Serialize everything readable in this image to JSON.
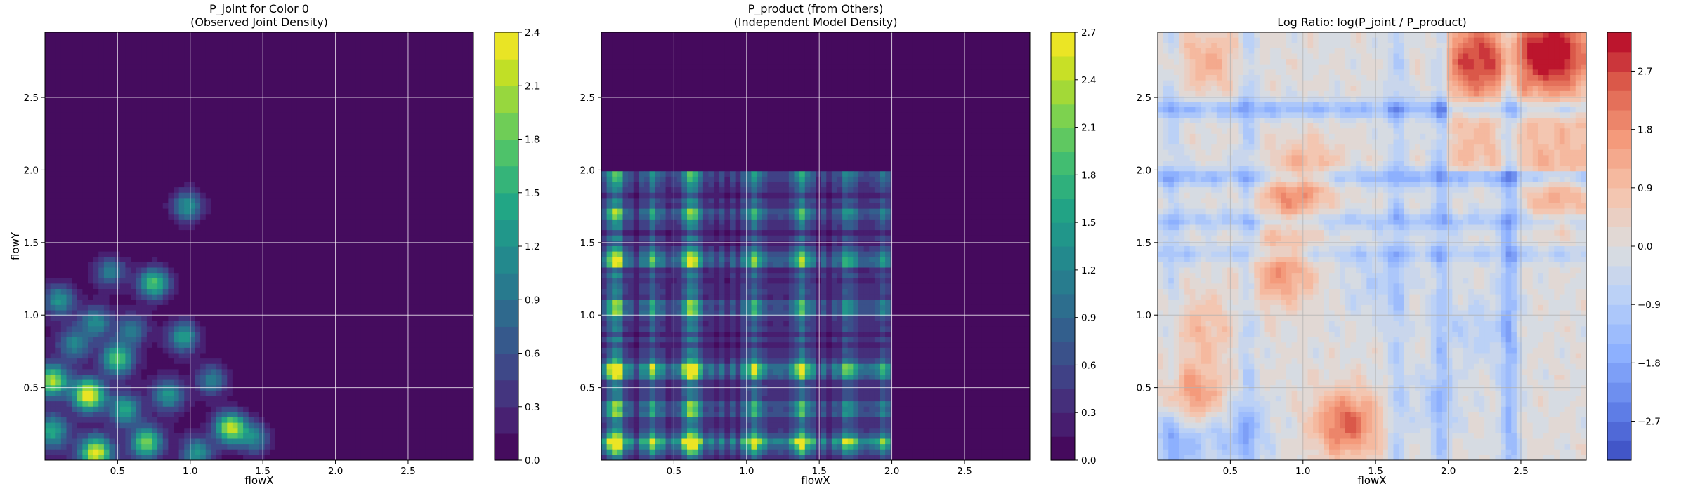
{
  "chart_data": [
    {
      "type": "heatmap",
      "title": "P_joint for Color 0",
      "subtitle": "(Observed Joint Density)",
      "xlabel": "flowX",
      "ylabel": "flowY",
      "xlim": [
        0.0,
        2.95
      ],
      "ylim": [
        0.0,
        2.95
      ],
      "xticks": [
        "0.5",
        "1.0",
        "1.5",
        "2.0",
        "2.5"
      ],
      "yticks": [
        "0.5",
        "1.0",
        "1.5",
        "2.0",
        "2.5"
      ],
      "colormap": "viridis",
      "grid": true,
      "colorbar": {
        "min": 0.0,
        "max": 2.4,
        "ticks": [
          "0.0",
          "0.3",
          "0.6",
          "0.9",
          "1.2",
          "1.5",
          "1.8",
          "2.1",
          "2.4"
        ]
      },
      "hotspots": [
        {
          "x": 0.3,
          "y": 0.45,
          "value": 2.4
        },
        {
          "x": 0.35,
          "y": 0.05,
          "value": 2.2
        },
        {
          "x": 1.28,
          "y": 0.22,
          "value": 2.2
        },
        {
          "x": 0.05,
          "y": 0.55,
          "value": 2.0
        },
        {
          "x": 0.5,
          "y": 0.7,
          "value": 1.7
        },
        {
          "x": 0.75,
          "y": 1.22,
          "value": 1.7
        },
        {
          "x": 0.7,
          "y": 0.12,
          "value": 1.8
        },
        {
          "x": 0.95,
          "y": 0.85,
          "value": 1.3
        },
        {
          "x": 0.98,
          "y": 1.75,
          "value": 1.2
        },
        {
          "x": 0.1,
          "y": 1.1,
          "value": 1.2
        },
        {
          "x": 0.55,
          "y": 0.35,
          "value": 1.3
        },
        {
          "x": 0.85,
          "y": 0.45,
          "value": 1.2
        },
        {
          "x": 1.15,
          "y": 0.55,
          "value": 1.0
        },
        {
          "x": 0.2,
          "y": 0.8,
          "value": 1.0
        },
        {
          "x": 0.45,
          "y": 1.3,
          "value": 1.0
        },
        {
          "x": 0.05,
          "y": 0.2,
          "value": 1.3
        },
        {
          "x": 1.45,
          "y": 0.15,
          "value": 1.0
        },
        {
          "x": 0.35,
          "y": 0.95,
          "value": 1.1
        },
        {
          "x": 1.05,
          "y": 0.05,
          "value": 1.2
        },
        {
          "x": 0.6,
          "y": 0.9,
          "value": 0.9
        }
      ]
    },
    {
      "type": "heatmap",
      "title": "P_product (from Others)",
      "subtitle": "(Independent Model Density)",
      "xlabel": "flowX",
      "ylabel": "",
      "xlim": [
        0.0,
        2.95
      ],
      "ylim": [
        0.0,
        2.95
      ],
      "xticks": [
        "0.5",
        "1.0",
        "1.5",
        "2.0",
        "2.5"
      ],
      "yticks": [
        "0.5",
        "1.0",
        "1.5",
        "2.0",
        "2.5"
      ],
      "colormap": "viridis",
      "grid": true,
      "colorbar": {
        "min": 0.0,
        "max": 2.7,
        "ticks": [
          "0.0",
          "0.3",
          "0.6",
          "0.9",
          "1.2",
          "1.5",
          "1.8",
          "2.1",
          "2.4",
          "2.7"
        ]
      },
      "marginal_x": [
        {
          "x": 0.1,
          "value": 1.0
        },
        {
          "x": 0.62,
          "value": 0.95
        },
        {
          "x": 1.05,
          "value": 0.6
        },
        {
          "x": 1.38,
          "value": 0.7
        },
        {
          "x": 0.35,
          "value": 0.5
        },
        {
          "x": 1.7,
          "value": 0.45
        },
        {
          "x": 1.95,
          "value": 0.3
        }
      ],
      "marginal_y": [
        {
          "y": 0.12,
          "value": 1.0
        },
        {
          "y": 0.62,
          "value": 0.9
        },
        {
          "y": 1.38,
          "value": 0.65
        },
        {
          "y": 1.05,
          "value": 0.5
        },
        {
          "y": 0.35,
          "value": 0.5
        },
        {
          "y": 1.7,
          "value": 0.4
        },
        {
          "y": 1.95,
          "value": 0.3
        }
      ]
    },
    {
      "type": "heatmap",
      "title": "Log Ratio: log(P_joint / P_product)",
      "xlabel": "flowX",
      "ylabel": "",
      "xlim": [
        0.0,
        2.95
      ],
      "ylim": [
        0.0,
        2.95
      ],
      "xticks": [
        "0.5",
        "1.0",
        "1.5",
        "2.0",
        "2.5"
      ],
      "yticks": [
        "0.5",
        "1.0",
        "1.5",
        "2.0",
        "2.5"
      ],
      "colormap": "coolwarm",
      "grid": true,
      "colorbar": {
        "min": -3.3,
        "max": 3.3,
        "ticks": [
          "−2.7",
          "−1.8",
          "−0.9",
          "0.0",
          "0.9",
          "1.8",
          "2.7"
        ],
        "tick_values": [
          -2.7,
          -1.8,
          -0.9,
          0.0,
          0.9,
          1.8,
          2.7
        ]
      },
      "features": [
        {
          "kind": "band_y",
          "at": 2.42,
          "value": -1.4
        },
        {
          "kind": "band_y",
          "at": 1.95,
          "value": -1.3
        },
        {
          "kind": "band_y",
          "at": 1.65,
          "value": -1.0
        },
        {
          "kind": "band_y",
          "at": 1.42,
          "value": -0.8
        },
        {
          "kind": "band_x",
          "at": 2.42,
          "value": -1.4
        },
        {
          "kind": "band_x",
          "at": 1.95,
          "value": -1.0
        },
        {
          "kind": "band_x",
          "at": 1.65,
          "value": -0.8
        },
        {
          "kind": "band_x",
          "at": 0.62,
          "value": -0.8
        },
        {
          "kind": "band_x",
          "at": 0.1,
          "value": -0.6
        },
        {
          "kind": "blob",
          "x": 2.7,
          "y": 2.8,
          "value": 3.0
        },
        {
          "kind": "blob",
          "x": 2.2,
          "y": 2.75,
          "value": 2.0
        },
        {
          "kind": "blob",
          "x": 1.3,
          "y": 0.25,
          "value": 2.4
        },
        {
          "kind": "blob",
          "x": 0.25,
          "y": 0.42,
          "value": 1.9
        },
        {
          "kind": "blob",
          "x": 0.85,
          "y": 1.3,
          "value": 1.7
        },
        {
          "kind": "blob",
          "x": 0.9,
          "y": 1.8,
          "value": 1.5
        },
        {
          "kind": "blob",
          "x": 0.35,
          "y": 2.75,
          "value": 1.2
        },
        {
          "kind": "blob",
          "x": 0.3,
          "y": 0.9,
          "value": 1.0
        },
        {
          "kind": "blob",
          "x": 1.05,
          "y": 2.0,
          "value": 1.0
        },
        {
          "kind": "blob",
          "x": 2.75,
          "y": 1.8,
          "value": 1.3
        },
        {
          "kind": "blob",
          "x": 0.15,
          "y": 0.15,
          "value": -1.5
        },
        {
          "kind": "blob",
          "x": 0.55,
          "y": 0.2,
          "value": -1.2
        },
        {
          "kind": "blob",
          "x": 2.2,
          "y": 0.9,
          "value": -0.8
        },
        {
          "kind": "blob",
          "x": 1.5,
          "y": 1.2,
          "value": -0.7
        },
        {
          "kind": "blob",
          "x": 1.9,
          "y": 0.4,
          "value": -0.6
        }
      ]
    }
  ]
}
